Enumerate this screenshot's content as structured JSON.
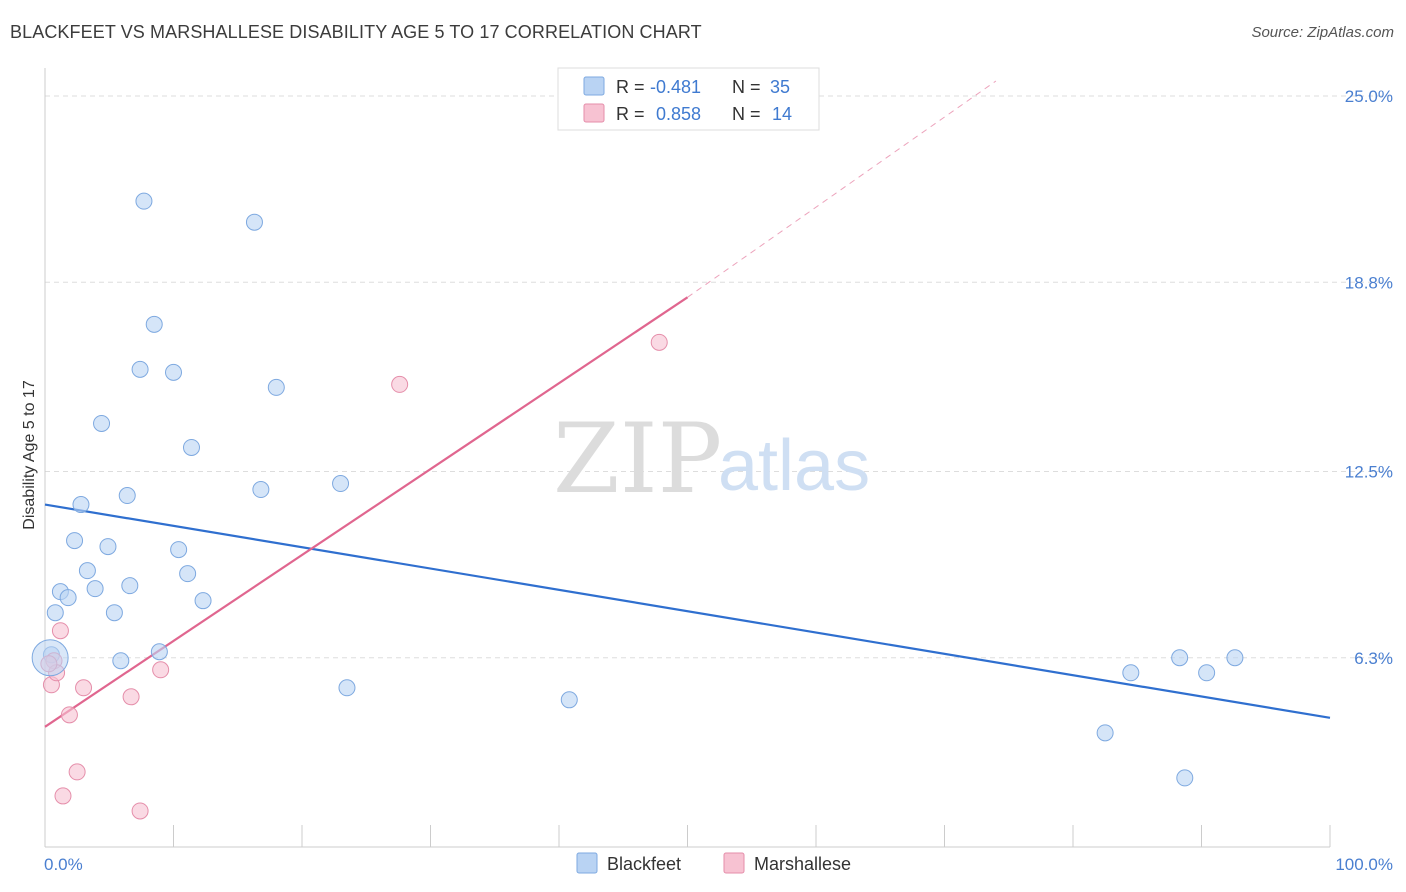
{
  "title": "BLACKFEET VS MARSHALLESE DISABILITY AGE 5 TO 17 CORRELATION CHART",
  "source": "Source: ZipAtlas.com",
  "watermark": {
    "zip": "ZIP",
    "atlas": "atlas"
  },
  "colors": {
    "blackfeet_fill": "#b9d3f3",
    "blackfeet_stroke": "#7ea9e0",
    "blackfeet_line": "#2f6fcf",
    "marshallese_fill": "#f7c2d2",
    "marshallese_stroke": "#e58eaa",
    "marshallese_line": "#e0668f",
    "grid": "#dddddd",
    "axis_text": "#4a7fd0"
  },
  "legend": {
    "rows": [
      {
        "r_label": "R = ",
        "r_value": "-0.481",
        "n_label": "N = ",
        "n_value": "35"
      },
      {
        "r_label": "R = ",
        "r_value": "0.858",
        "n_label": "N = ",
        "n_value": "14"
      }
    ]
  },
  "chart_data": {
    "type": "scatter",
    "title": "BLACKFEET VS MARSHALLESE DISABILITY AGE 5 TO 17 CORRELATION CHART",
    "xlabel": "",
    "ylabel": "Disability Age 5 to 17",
    "xlim": [
      0,
      100
    ],
    "ylim": [
      0,
      25.6
    ],
    "x_tick_labels": [
      "0.0%",
      "100.0%"
    ],
    "y_ticks": [
      6.3,
      12.5,
      18.8,
      25.0
    ],
    "y_tick_labels": [
      "6.3%",
      "12.5%",
      "18.8%",
      "25.0%"
    ],
    "series": [
      {
        "name": "Blackfeet",
        "R": -0.481,
        "N": 35,
        "points": [
          [
            0.5,
            6.4
          ],
          [
            0.8,
            7.8
          ],
          [
            1.2,
            8.5
          ],
          [
            1.8,
            8.3
          ],
          [
            2.3,
            10.2
          ],
          [
            2.8,
            11.4
          ],
          [
            3.3,
            9.2
          ],
          [
            3.9,
            8.6
          ],
          [
            4.4,
            14.1
          ],
          [
            4.9,
            10.0
          ],
          [
            5.4,
            7.8
          ],
          [
            5.9,
            6.2
          ],
          [
            6.4,
            11.7
          ],
          [
            6.6,
            8.7
          ],
          [
            7.4,
            15.9
          ],
          [
            7.7,
            21.5
          ],
          [
            8.5,
            17.4
          ],
          [
            8.9,
            6.5
          ],
          [
            10.0,
            15.8
          ],
          [
            10.4,
            9.9
          ],
          [
            11.1,
            9.1
          ],
          [
            11.4,
            13.3
          ],
          [
            12.3,
            8.2
          ],
          [
            16.3,
            20.8
          ],
          [
            16.8,
            11.9
          ],
          [
            18.0,
            15.3
          ],
          [
            23.0,
            12.1
          ],
          [
            23.5,
            5.3
          ],
          [
            40.8,
            4.9
          ],
          [
            82.5,
            3.8
          ],
          [
            84.5,
            5.8
          ],
          [
            88.7,
            2.3
          ],
          [
            88.3,
            6.3
          ],
          [
            90.4,
            5.8
          ],
          [
            92.6,
            6.3
          ]
        ]
      },
      {
        "name": "Marshallese",
        "R": 0.858,
        "N": 14,
        "points": [
          [
            0.5,
            5.4
          ],
          [
            0.7,
            6.2
          ],
          [
            0.9,
            5.8
          ],
          [
            1.2,
            7.2
          ],
          [
            1.9,
            4.4
          ],
          [
            2.5,
            2.5
          ],
          [
            3.0,
            5.3
          ],
          [
            1.4,
            1.7
          ],
          [
            6.7,
            5.0
          ],
          [
            7.4,
            1.2
          ],
          [
            9.0,
            5.9
          ],
          [
            27.6,
            15.4
          ],
          [
            47.8,
            16.8
          ],
          [
            0.3,
            6.1
          ]
        ]
      }
    ],
    "trend_lines": [
      {
        "series": "Blackfeet",
        "x": [
          0,
          100
        ],
        "y": [
          11.4,
          4.3
        ],
        "style": "solid"
      },
      {
        "series": "Marshallese",
        "x": [
          0,
          50
        ],
        "y": [
          4.0,
          18.3
        ],
        "style": "solid"
      },
      {
        "series": "Marshallese",
        "x": [
          50,
          74
        ],
        "y": [
          18.3,
          25.5
        ],
        "style": "dashed"
      }
    ],
    "legend_position": "top-center",
    "bottom_legend": [
      "Blackfeet",
      "Marshallese"
    ],
    "grid": true
  }
}
